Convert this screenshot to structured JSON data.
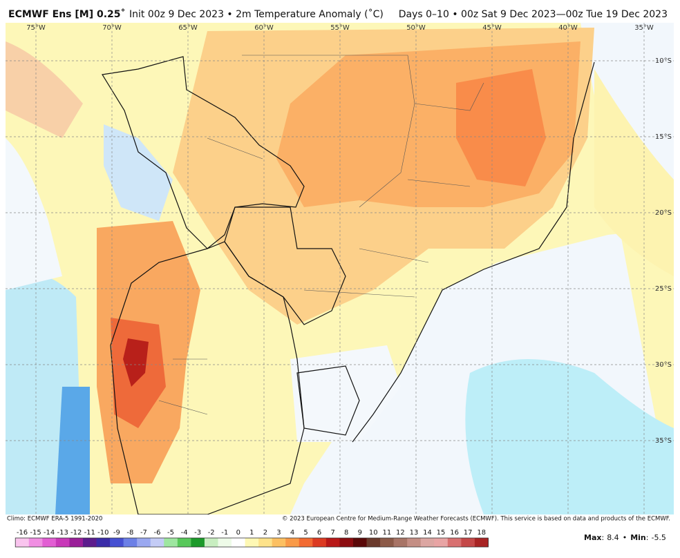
{
  "header": {
    "title_bold": "ECMWF Ens [M] 0.25˚",
    "title_rest": "Init 00z 9 Dec 2023 • 2m Temperature Anomaly (˚C)",
    "period": "Days 0–10 • 00z Sat 9 Dec 2023—00z Tue 19 Dec 2023"
  },
  "map": {
    "longitudes": [
      "75°W",
      "70°W",
      "65°W",
      "60°W",
      "55°W",
      "50°W",
      "45°W",
      "40°W",
      "35°W"
    ],
    "latitudes": [
      "10°S",
      "15°S",
      "20°S",
      "25°S",
      "30°S",
      "35°S"
    ]
  },
  "footer": {
    "climo": "Climo: ECMWF ERA-5 1991-2020",
    "copyright": "© 2023 European Centre for Medium-Range Weather Forecasts (ECMWF). This service is based on data and products of the ECMWF.",
    "max_label": "Max",
    "max": 8.4,
    "min_label": "Min",
    "min": -5.5
  },
  "colorbar": {
    "ticks": [
      -16,
      -15,
      -14,
      -13,
      -12,
      -11,
      -10,
      -9,
      -8,
      -7,
      -6,
      -5,
      -4,
      -3,
      -2,
      -1,
      0,
      1,
      2,
      3,
      4,
      5,
      6,
      7,
      8,
      9,
      10,
      11,
      12,
      13,
      14,
      15,
      16,
      17,
      18
    ],
    "colors": [
      "#f9c4ee",
      "#f08ee2",
      "#e25ed3",
      "#c838b8",
      "#9a1e98",
      "#5c1c8c",
      "#3a2ca8",
      "#4650d2",
      "#6c80e6",
      "#9aa8f0",
      "#c4ccf6",
      "#9ee6a0",
      "#58c85a",
      "#1c9a2a",
      "#c8eec0",
      "#eefbe8",
      "#ffffff",
      "#fef8b4",
      "#fde28a",
      "#fcc062",
      "#f99a48",
      "#f26a32",
      "#dc3a22",
      "#b81818",
      "#8c0c10",
      "#5a0808",
      "#6a3a2c",
      "#8c5a48",
      "#a87466",
      "#c48e84",
      "#dca6a2",
      "#e8a4a4",
      "#d87070",
      "#c44848",
      "#a82424"
    ]
  }
}
